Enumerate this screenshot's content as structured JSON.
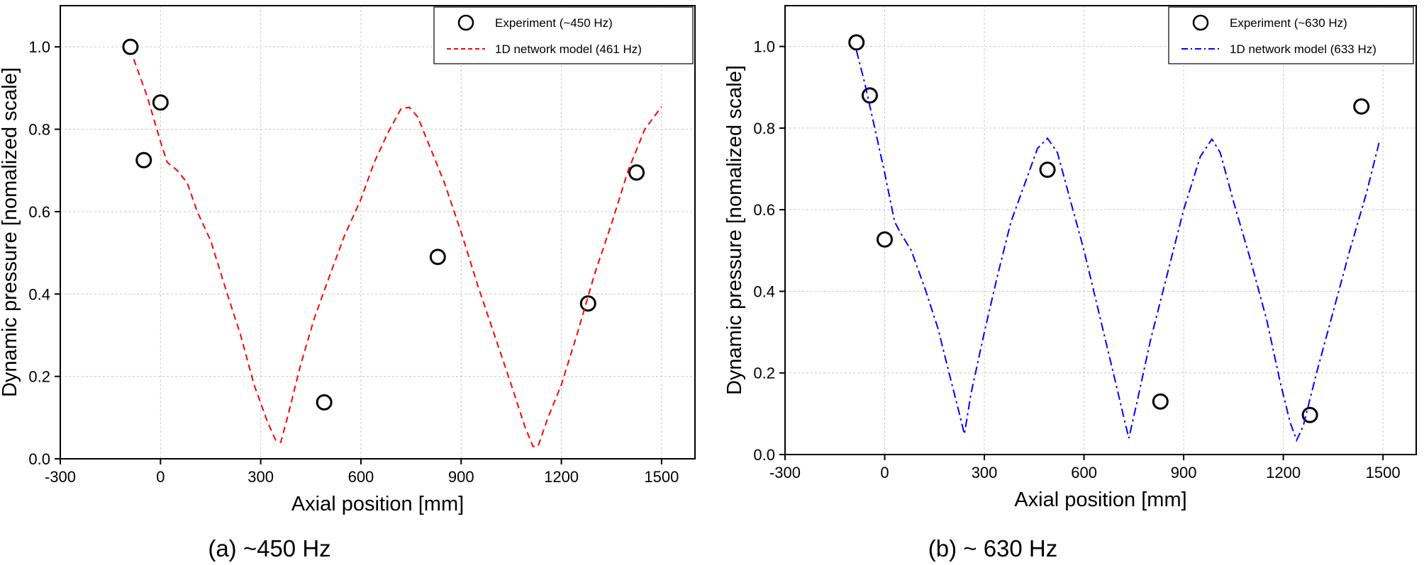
{
  "chart_data": [
    {
      "type": "scatter",
      "caption": "(a) ~450 Hz",
      "xlabel": "Axial position [mm]",
      "ylabel": "Dynamic pressure [nomalized scale]",
      "xlim": [
        -300,
        1600
      ],
      "ylim": [
        0,
        1.1
      ],
      "xticks": [
        -300,
        0,
        300,
        600,
        900,
        1200,
        1500
      ],
      "yticks": [
        0.0,
        0.2,
        0.4,
        0.6,
        0.8,
        1.0
      ],
      "grid": true,
      "legend_position": "top-right",
      "series": [
        {
          "name": "Experiment (~450 Hz)",
          "kind": "markers",
          "marker": "open-circle",
          "color": "#000000",
          "points": [
            [
              -90,
              1.0
            ],
            [
              0,
              0.865
            ],
            [
              -50,
              0.725
            ],
            [
              490,
              0.137
            ],
            [
              830,
              0.49
            ],
            [
              1280,
              0.377
            ],
            [
              1425,
              0.695
            ]
          ]
        },
        {
          "name": "1D network model (461 Hz)",
          "kind": "line",
          "dash": "dashed",
          "color": "#ff0000",
          "points": [
            [
              -80,
              0.97
            ],
            [
              -40,
              0.88
            ],
            [
              0,
              0.77
            ],
            [
              20,
              0.72
            ],
            [
              50,
              0.7
            ],
            [
              80,
              0.67
            ],
            [
              110,
              0.6
            ],
            [
              150,
              0.53
            ],
            [
              200,
              0.4
            ],
            [
              240,
              0.3
            ],
            [
              280,
              0.18
            ],
            [
              320,
              0.09
            ],
            [
              345,
              0.045
            ],
            [
              360,
              0.04
            ],
            [
              380,
              0.1
            ],
            [
              420,
              0.23
            ],
            [
              460,
              0.34
            ],
            [
              500,
              0.43
            ],
            [
              550,
              0.54
            ],
            [
              600,
              0.63
            ],
            [
              640,
              0.72
            ],
            [
              680,
              0.79
            ],
            [
              720,
              0.85
            ],
            [
              745,
              0.853
            ],
            [
              770,
              0.83
            ],
            [
              800,
              0.77
            ],
            [
              850,
              0.67
            ],
            [
              900,
              0.55
            ],
            [
              950,
              0.42
            ],
            [
              1000,
              0.3
            ],
            [
              1050,
              0.18
            ],
            [
              1090,
              0.08
            ],
            [
              1115,
              0.03
            ],
            [
              1130,
              0.03
            ],
            [
              1160,
              0.1
            ],
            [
              1200,
              0.18
            ],
            [
              1250,
              0.31
            ],
            [
              1300,
              0.45
            ],
            [
              1350,
              0.57
            ],
            [
              1400,
              0.7
            ],
            [
              1450,
              0.8
            ],
            [
              1500,
              0.855
            ]
          ]
        }
      ]
    },
    {
      "type": "scatter",
      "caption": "(b) ~ 630 Hz",
      "xlabel": "Axial position [mm]",
      "ylabel": "Dynamic pressure [nomalized scale]",
      "xlim": [
        -300,
        1600
      ],
      "ylim": [
        0,
        1.1
      ],
      "xticks": [
        -300,
        0,
        300,
        600,
        900,
        1200,
        1500
      ],
      "yticks": [
        0.0,
        0.2,
        0.4,
        0.6,
        0.8,
        1.0
      ],
      "grid": true,
      "legend_position": "top-right",
      "series": [
        {
          "name": "Experiment (~630 Hz)",
          "kind": "markers",
          "marker": "open-circle",
          "color": "#000000",
          "points": [
            [
              -85,
              1.01
            ],
            [
              -45,
              0.88
            ],
            [
              0,
              0.527
            ],
            [
              490,
              0.698
            ],
            [
              830,
              0.13
            ],
            [
              1280,
              0.097
            ],
            [
              1435,
              0.853
            ]
          ]
        },
        {
          "name": "1D network model (633 Hz)",
          "kind": "line",
          "dash": "dash-dot",
          "color": "#0000ff",
          "points": [
            [
              -85,
              0.99
            ],
            [
              -60,
              0.91
            ],
            [
              -30,
              0.8
            ],
            [
              0,
              0.69
            ],
            [
              30,
              0.57
            ],
            [
              50,
              0.54
            ],
            [
              80,
              0.5
            ],
            [
              120,
              0.41
            ],
            [
              160,
              0.31
            ],
            [
              200,
              0.18
            ],
            [
              225,
              0.1
            ],
            [
              240,
              0.05
            ],
            [
              260,
              0.15
            ],
            [
              300,
              0.3
            ],
            [
              340,
              0.44
            ],
            [
              380,
              0.57
            ],
            [
              420,
              0.66
            ],
            [
              460,
              0.75
            ],
            [
              490,
              0.775
            ],
            [
              520,
              0.74
            ],
            [
              560,
              0.62
            ],
            [
              600,
              0.5
            ],
            [
              650,
              0.33
            ],
            [
              700,
              0.16
            ],
            [
              720,
              0.09
            ],
            [
              735,
              0.04
            ],
            [
              760,
              0.13
            ],
            [
              800,
              0.28
            ],
            [
              850,
              0.44
            ],
            [
              900,
              0.6
            ],
            [
              950,
              0.73
            ],
            [
              985,
              0.773
            ],
            [
              1010,
              0.74
            ],
            [
              1050,
              0.62
            ],
            [
              1100,
              0.48
            ],
            [
              1150,
              0.33
            ],
            [
              1190,
              0.18
            ],
            [
              1220,
              0.08
            ],
            [
              1240,
              0.035
            ],
            [
              1260,
              0.07
            ],
            [
              1300,
              0.2
            ],
            [
              1350,
              0.35
            ],
            [
              1400,
              0.5
            ],
            [
              1450,
              0.64
            ],
            [
              1490,
              0.77
            ]
          ]
        }
      ]
    }
  ]
}
